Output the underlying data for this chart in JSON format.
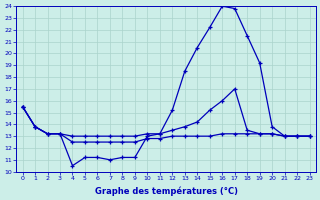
{
  "title": "Graphe des températures (°C)",
  "bg_color": "#cceee8",
  "grid_color": "#aad4cc",
  "line_color": "#0000bb",
  "hours": [
    0,
    1,
    2,
    3,
    4,
    5,
    6,
    7,
    8,
    9,
    10,
    11,
    12,
    13,
    14,
    15,
    16,
    17,
    18,
    19,
    20,
    21,
    22,
    23
  ],
  "ylim": [
    10,
    24
  ],
  "yticks": [
    10,
    11,
    12,
    13,
    14,
    15,
    16,
    17,
    18,
    19,
    20,
    21,
    22,
    23,
    24
  ],
  "line1": [
    15.5,
    13.8,
    13.2,
    13.2,
    10.5,
    11.2,
    11.2,
    11.0,
    11.2,
    11.2,
    13.0,
    13.2,
    15.2,
    18.5,
    20.5,
    22.2,
    24.0,
    23.8,
    21.5,
    19.2,
    13.8,
    13.0,
    13.0,
    13.0
  ],
  "line2": [
    15.5,
    13.8,
    13.2,
    13.2,
    13.0,
    13.0,
    13.0,
    13.0,
    13.0,
    13.0,
    13.2,
    13.2,
    13.5,
    13.8,
    14.2,
    15.2,
    16.0,
    17.0,
    13.5,
    13.2,
    13.2,
    13.0,
    13.0,
    13.0
  ],
  "line3": [
    15.5,
    13.8,
    13.2,
    13.2,
    12.5,
    12.5,
    12.5,
    12.5,
    12.5,
    12.5,
    12.8,
    12.8,
    13.0,
    13.0,
    13.0,
    13.0,
    13.2,
    13.2,
    13.2,
    13.2,
    13.2,
    13.0,
    13.0,
    13.0
  ]
}
